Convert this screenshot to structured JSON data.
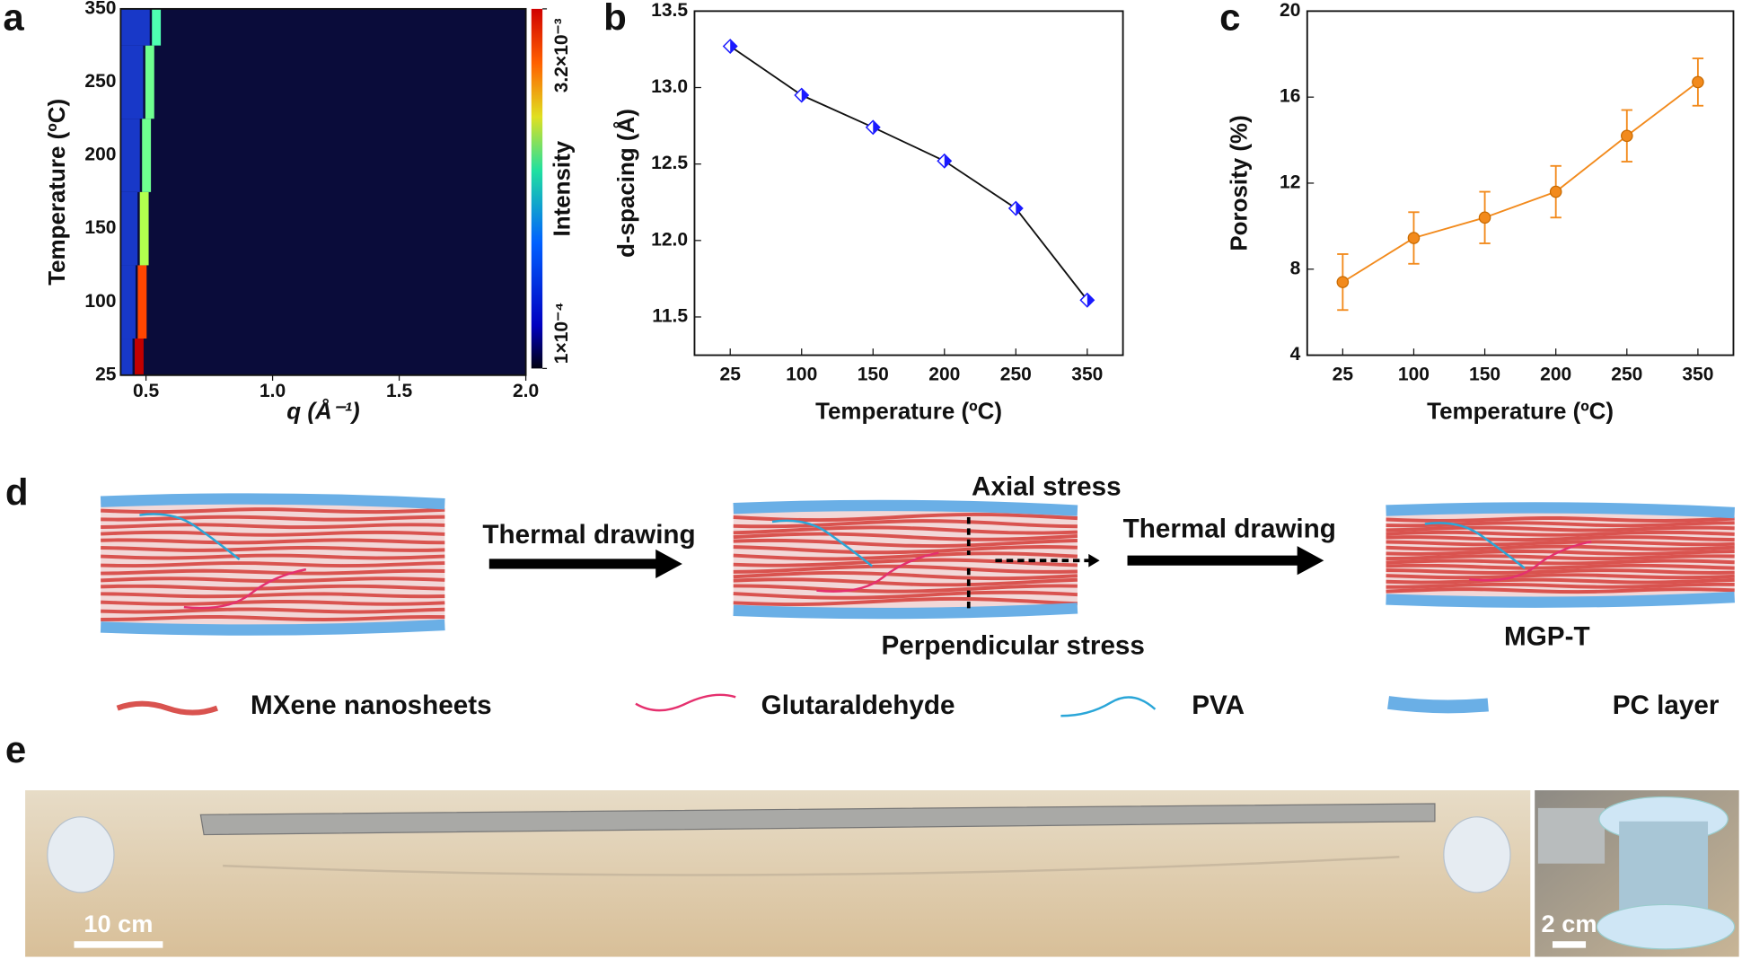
{
  "panel_labels": [
    "a",
    "b",
    "c",
    "d",
    "e"
  ],
  "chart_data": [
    {
      "type": "heatmap",
      "categories": [
        "25",
        "100",
        "150",
        "200",
        "250",
        "350"
      ],
      "y_label": "Temperature (ºC)",
      "x_label": "q (Å⁻¹)",
      "colorbar_label": "Intensity",
      "xlim": [
        0.4,
        2.0
      ],
      "xticks": [
        0.5,
        {
          "value": 1,
          "label": "1.0"
        },
        1.5,
        {
          "value": 2,
          "label": "2.0"
        }
      ],
      "peak_q": [
        0.473,
        0.485,
        0.493,
        0.502,
        0.515,
        0.541
      ],
      "values": [
        0.003,
        0.0026,
        0.0018,
        0.0016,
        0.0016,
        0.0015
      ],
      "clim": [
        0.0001,
        0.0032
      ],
      "colormap": "jet",
      "cticks": [
        {
          "value": 0.0001,
          "label": "1×10⁻⁴"
        },
        {
          "value": 0.0032,
          "label": "3.2×10⁻³"
        }
      ]
    },
    {
      "type": "line",
      "categories": [
        "25",
        "100",
        "150",
        "200",
        "250",
        "350"
      ],
      "x_label": "Temperature (ºC)",
      "y_label": "d-spacing (Å)",
      "values": [
        13.27,
        12.95,
        12.74,
        12.52,
        12.21,
        11.61
      ],
      "color": "#1a1aff",
      "marker": "half-diamond",
      "ylim": [
        11.25,
        13.5
      ],
      "yticks": [
        11.5,
        {
          "value": 12,
          "label": "12.0"
        },
        12.5,
        {
          "value": 13,
          "label": "13.0"
        },
        13.5
      ]
    },
    {
      "type": "line",
      "categories": [
        "25",
        "100",
        "150",
        "200",
        "250",
        "350"
      ],
      "x_label": "Temperature (ºC)",
      "y_label": "Porosity (%)",
      "values": [
        7.4,
        9.45,
        10.4,
        11.6,
        14.2,
        16.7
      ],
      "errors": [
        1.3,
        1.2,
        1.2,
        1.2,
        1.2,
        1.1
      ],
      "color": "#f28a1c",
      "marker": "circle",
      "ylim": [
        4,
        20
      ],
      "yticks": [
        4,
        8,
        12,
        16,
        20
      ]
    }
  ],
  "diagram": {
    "steps": [
      "Thermal drawing",
      "Thermal drawing"
    ],
    "stress_labels": [
      "Axial stress",
      "Perpendicular stress"
    ],
    "product": "MGP-T",
    "legend": [
      "MXene nanosheets",
      "Glutaraldehyde",
      "PVA",
      "PC layer"
    ]
  },
  "photos": {
    "scale_bars": [
      "10 cm",
      "2 cm"
    ]
  }
}
